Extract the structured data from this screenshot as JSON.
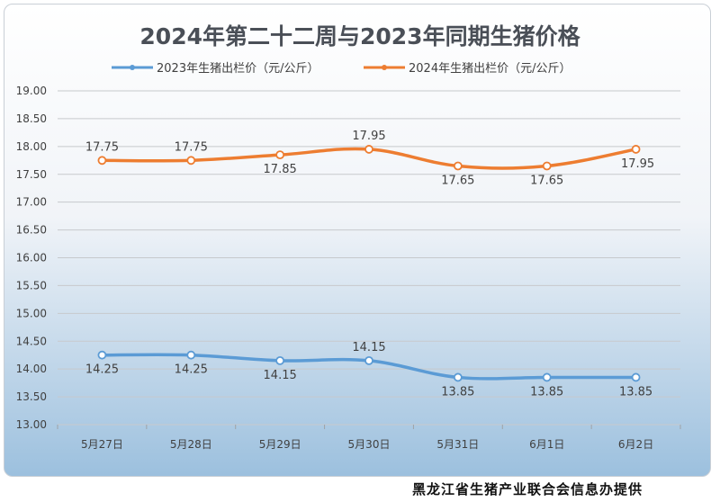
{
  "chart_data": {
    "type": "line",
    "title": "2024年第二十二周与2023年同期生猪价格",
    "categories": [
      "5月27日",
      "5月28日",
      "5月29日",
      "5月30日",
      "5月31日",
      "6月1日",
      "6月2日"
    ],
    "series": [
      {
        "name": "2023年生猪出栏价（元/公斤）",
        "color": "#5b9bd5",
        "values": [
          14.25,
          14.25,
          14.15,
          14.15,
          13.85,
          13.85,
          13.85
        ],
        "labels": [
          "14.25",
          "14.25",
          "14.15",
          "14.15",
          "13.85",
          "13.85",
          "13.85"
        ]
      },
      {
        "name": "2024年生猪出栏价（元/公斤）",
        "color": "#ed7d31",
        "values": [
          17.75,
          17.75,
          17.85,
          17.95,
          17.65,
          17.65,
          17.95
        ],
        "labels": [
          "17.75",
          "17.75",
          "17.85",
          "17.95",
          "17.65",
          "17.65",
          "17.95"
        ]
      }
    ],
    "ylim": [
      13.0,
      19.0
    ],
    "yticks": [
      "19.00",
      "18.50",
      "18.00",
      "17.50",
      "17.00",
      "16.50",
      "16.00",
      "15.50",
      "15.00",
      "14.50",
      "14.00",
      "13.50",
      "13.00"
    ],
    "legend_position": "top",
    "smooth": true
  },
  "footer": "黑龙江省生猪产业联合会信息办提供"
}
